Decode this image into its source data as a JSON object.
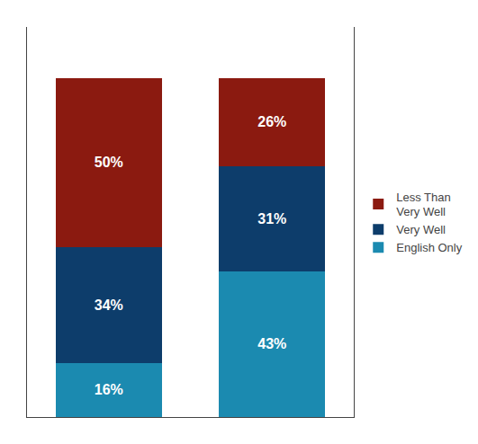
{
  "chart_data": {
    "type": "bar",
    "stacked": true,
    "categories": [
      null,
      null
    ],
    "series": [
      {
        "name": "English Only",
        "color": "#1b8ab0",
        "values": [
          16,
          43
        ],
        "value_labels": [
          "16%",
          "43%"
        ]
      },
      {
        "name": "Very Well",
        "color": "#0d3d6b",
        "values": [
          34,
          31
        ],
        "value_labels": [
          "34%",
          "31%"
        ]
      },
      {
        "name": "Less Than\nVery Well",
        "color": "#8b1a10",
        "values": [
          50,
          26
        ],
        "value_labels": [
          "50%",
          "26%"
        ]
      }
    ],
    "ylim": [
      0,
      115
    ],
    "grid": false,
    "legend": "right",
    "data_labels": true,
    "tick_labels": false
  }
}
